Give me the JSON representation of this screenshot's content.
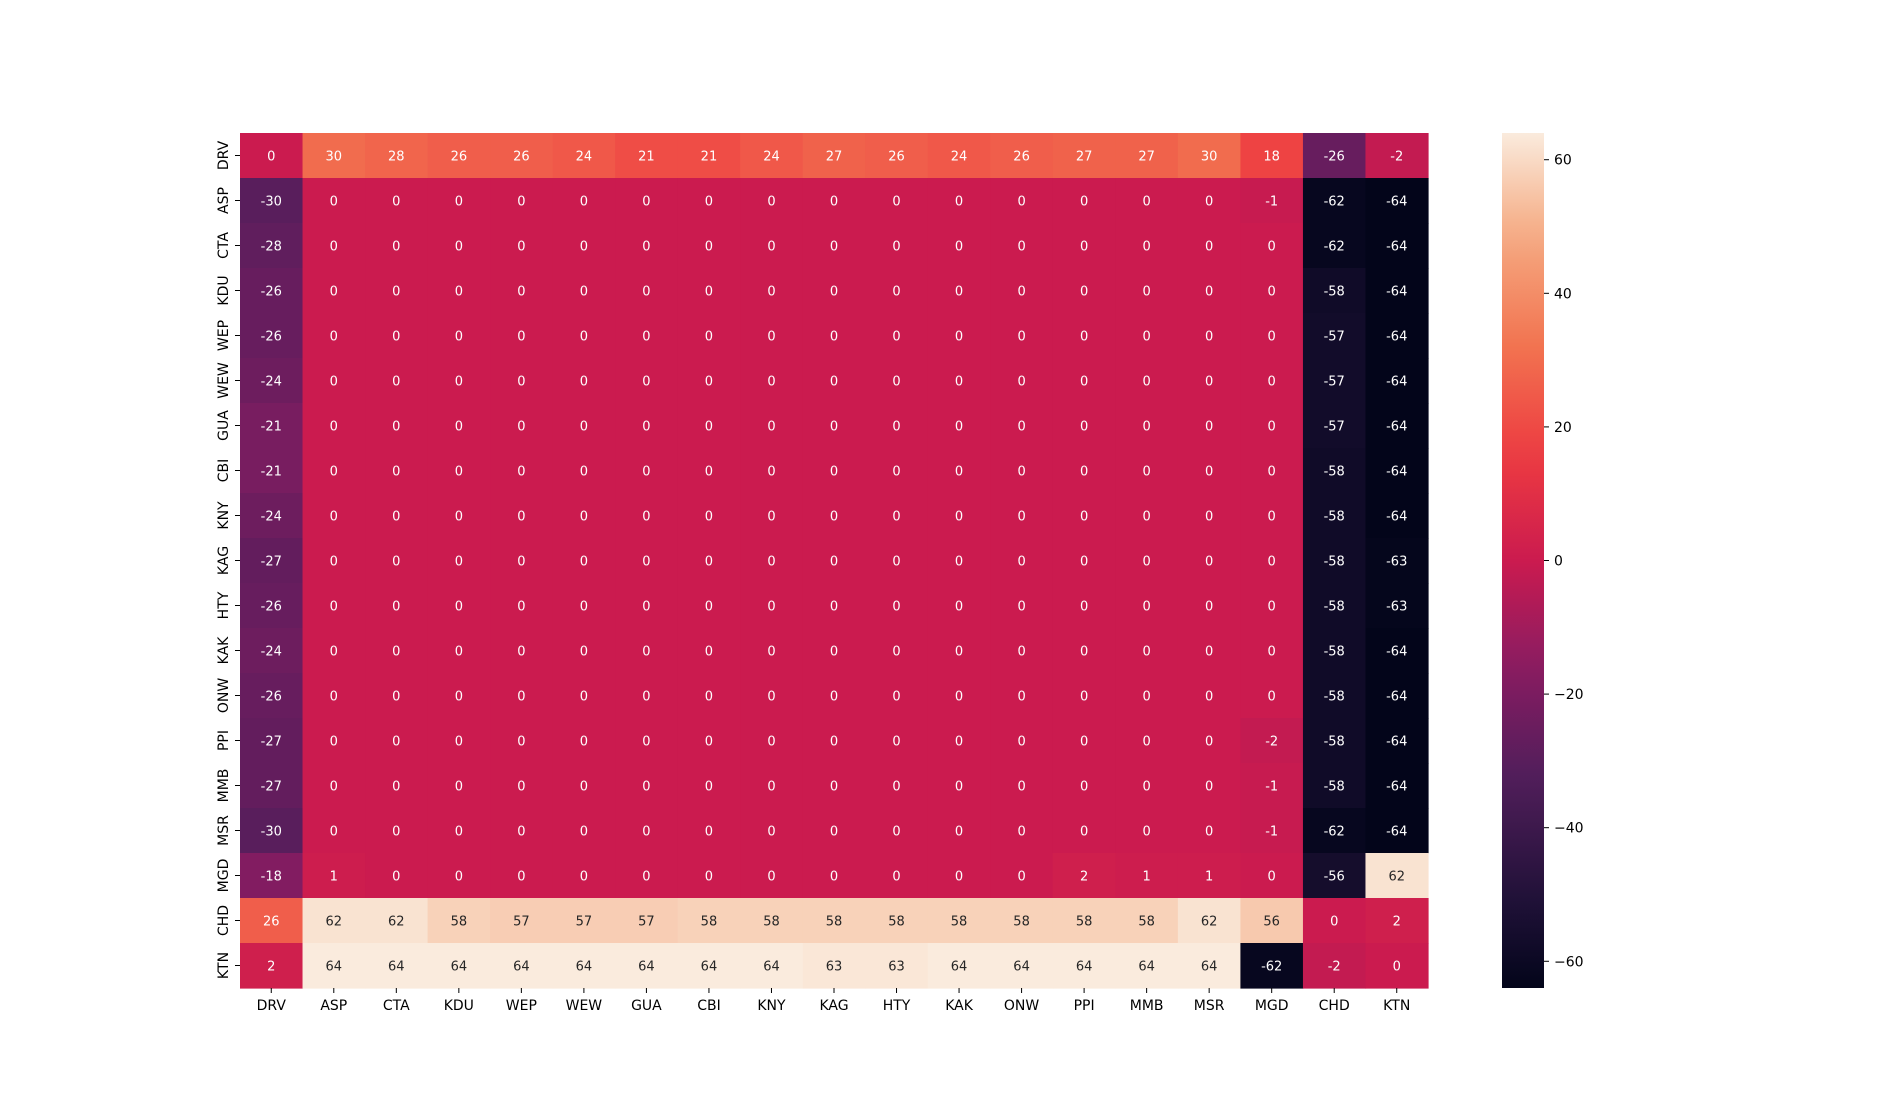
{
  "chart_data": {
    "type": "heatmap",
    "title": "",
    "xlabel": "",
    "ylabel": "",
    "x_labels": [
      "DRV",
      "ASP",
      "CTA",
      "KDU",
      "WEP",
      "WEW",
      "GUA",
      "CBI",
      "KNY",
      "KAG",
      "HTY",
      "KAK",
      "ONW",
      "PPI",
      "MMB",
      "MSR",
      "MGD",
      "CHD",
      "KTN"
    ],
    "y_labels": [
      "DRV",
      "ASP",
      "CTA",
      "KDU",
      "WEP",
      "WEW",
      "GUA",
      "CBI",
      "KNY",
      "KAG",
      "HTY",
      "KAK",
      "ONW",
      "PPI",
      "MMB",
      "MSR",
      "MGD",
      "CHD",
      "KTN"
    ],
    "values": [
      [
        0,
        30,
        28,
        26,
        26,
        24,
        21,
        21,
        24,
        27,
        26,
        24,
        26,
        27,
        27,
        30,
        18,
        -26,
        -2
      ],
      [
        -30,
        0,
        0,
        0,
        0,
        0,
        0,
        0,
        0,
        0,
        0,
        0,
        0,
        0,
        0,
        0,
        -1,
        -62,
        -64
      ],
      [
        -28,
        0,
        0,
        0,
        0,
        0,
        0,
        0,
        0,
        0,
        0,
        0,
        0,
        0,
        0,
        0,
        0,
        -62,
        -64
      ],
      [
        -26,
        0,
        0,
        0,
        0,
        0,
        0,
        0,
        0,
        0,
        0,
        0,
        0,
        0,
        0,
        0,
        0,
        -58,
        -64
      ],
      [
        -26,
        0,
        0,
        0,
        0,
        0,
        0,
        0,
        0,
        0,
        0,
        0,
        0,
        0,
        0,
        0,
        0,
        -57,
        -64
      ],
      [
        -24,
        0,
        0,
        0,
        0,
        0,
        0,
        0,
        0,
        0,
        0,
        0,
        0,
        0,
        0,
        0,
        0,
        -57,
        -64
      ],
      [
        -21,
        0,
        0,
        0,
        0,
        0,
        0,
        0,
        0,
        0,
        0,
        0,
        0,
        0,
        0,
        0,
        0,
        -57,
        -64
      ],
      [
        -21,
        0,
        0,
        0,
        0,
        0,
        0,
        0,
        0,
        0,
        0,
        0,
        0,
        0,
        0,
        0,
        0,
        -58,
        -64
      ],
      [
        -24,
        0,
        0,
        0,
        0,
        0,
        0,
        0,
        0,
        0,
        0,
        0,
        0,
        0,
        0,
        0,
        0,
        -58,
        -64
      ],
      [
        -27,
        0,
        0,
        0,
        0,
        0,
        0,
        0,
        0,
        0,
        0,
        0,
        0,
        0,
        0,
        0,
        0,
        -58,
        -63
      ],
      [
        -26,
        0,
        0,
        0,
        0,
        0,
        0,
        0,
        0,
        0,
        0,
        0,
        0,
        0,
        0,
        0,
        0,
        -58,
        -63
      ],
      [
        -24,
        0,
        0,
        0,
        0,
        0,
        0,
        0,
        0,
        0,
        0,
        0,
        0,
        0,
        0,
        0,
        0,
        -58,
        -64
      ],
      [
        -26,
        0,
        0,
        0,
        0,
        0,
        0,
        0,
        0,
        0,
        0,
        0,
        0,
        0,
        0,
        0,
        0,
        -58,
        -64
      ],
      [
        -27,
        0,
        0,
        0,
        0,
        0,
        0,
        0,
        0,
        0,
        0,
        0,
        0,
        0,
        0,
        0,
        -2,
        -58,
        -64
      ],
      [
        -27,
        0,
        0,
        0,
        0,
        0,
        0,
        0,
        0,
        0,
        0,
        0,
        0,
        0,
        0,
        0,
        -1,
        -58,
        -64
      ],
      [
        -30,
        0,
        0,
        0,
        0,
        0,
        0,
        0,
        0,
        0,
        0,
        0,
        0,
        0,
        0,
        0,
        -1,
        -62,
        -64
      ],
      [
        -18,
        1,
        0,
        0,
        0,
        0,
        0,
        0,
        0,
        0,
        0,
        0,
        0,
        2,
        1,
        1,
        0,
        -56,
        62
      ],
      [
        26,
        62,
        62,
        58,
        57,
        57,
        57,
        58,
        58,
        58,
        58,
        58,
        58,
        58,
        58,
        62,
        56,
        0,
        2
      ],
      [
        2,
        64,
        64,
        64,
        64,
        64,
        64,
        64,
        64,
        63,
        63,
        64,
        64,
        64,
        64,
        64,
        -62,
        -2,
        0
      ]
    ],
    "colorbar": {
      "range": [
        -64,
        64
      ],
      "ticks": [
        60,
        40,
        20,
        0,
        -20,
        -40,
        -60
      ],
      "tick_labels": [
        "60",
        "40",
        "20",
        "0",
        "−20",
        "−40",
        "−60"
      ]
    },
    "colormap": "rocket",
    "annotation_colors": {
      "light": "#ffffff",
      "dark": "#262626"
    },
    "grid": false
  }
}
